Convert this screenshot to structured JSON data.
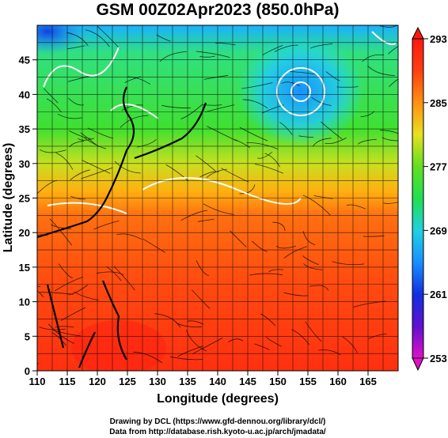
{
  "chart_data": {
    "type": "heatmap",
    "title": "GSM 00Z02Apr2023 (850.0hPa)",
    "xlabel": "Longitude (degrees)",
    "ylabel": "Latitude  (degrees)",
    "xlim": [
      110,
      170
    ],
    "ylim": [
      0,
      50
    ],
    "x_ticks": [
      110,
      115,
      120,
      125,
      130,
      135,
      140,
      145,
      150,
      155,
      160,
      165
    ],
    "y_ticks": [
      0,
      5,
      10,
      15,
      20,
      25,
      30,
      35,
      40,
      45
    ],
    "grid": true,
    "colorbar": {
      "ticks": [
        293,
        285,
        277,
        269,
        261,
        253
      ],
      "range": [
        253,
        293
      ],
      "stops": [
        "#e010c8",
        "#6010d0",
        "#1030e0",
        "#1890ff",
        "#20d0e0",
        "#20e050",
        "#60e020",
        "#e8e020",
        "#ff9010",
        "#ff4010",
        "#ff1810"
      ]
    },
    "overlays": [
      "temperature shading",
      "wind streamlines",
      "white contours",
      "coastlines"
    ]
  },
  "credits": {
    "line1": "Drawing by DCL (https://www.gfd-dennou.org/library/dcl/)",
    "line2": "Data from http://database.rish.kyoto-u.ac.jp/arch/jmadata/"
  }
}
